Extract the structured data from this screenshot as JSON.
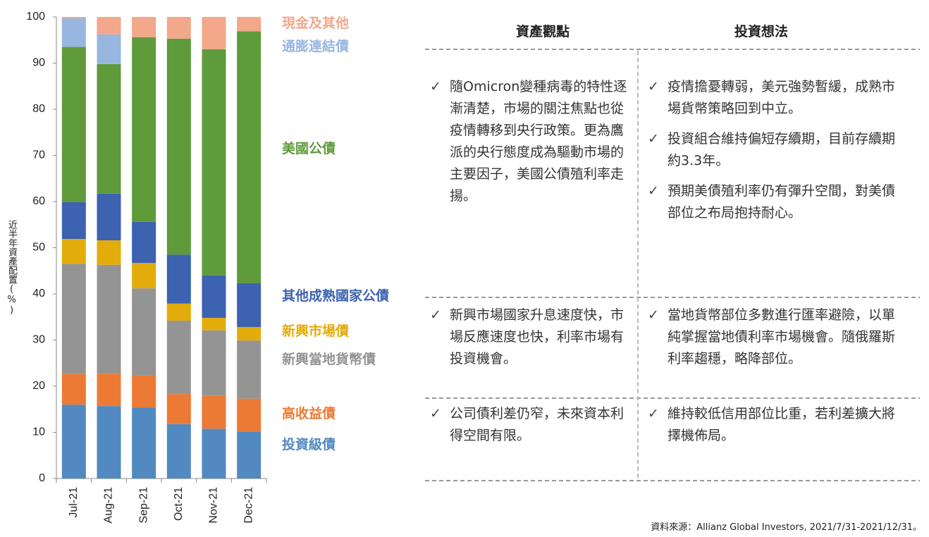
{
  "chart_data": {
    "type": "stacked-bar",
    "y_label": "近半年資產配置(%)",
    "categories": [
      "Jul-21",
      "Aug-21",
      "Sep-21",
      "Oct-21",
      "Nov-21",
      "Dec-21"
    ],
    "ylim": [
      0,
      100
    ],
    "yticks": [
      0,
      10,
      20,
      30,
      40,
      50,
      60,
      70,
      80,
      90,
      100
    ],
    "series": [
      {
        "name": "投資級債",
        "color": "#5289c1",
        "values": [
          16,
          15.7,
          15.4,
          11.8,
          10.8,
          10.2
        ]
      },
      {
        "name": "高收益債",
        "color": "#ec7a35",
        "values": [
          6.7,
          7,
          6.9,
          6.5,
          7.1,
          7.1
        ]
      },
      {
        "name": "新興當地貨幣債",
        "color": "#949494",
        "values": [
          23.8,
          23.6,
          18.9,
          15.9,
          14.2,
          12.6
        ]
      },
      {
        "name": "新興市場債",
        "color": "#e3ac0b",
        "values": [
          5.4,
          5.3,
          5.5,
          3.7,
          2.7,
          2.9
        ]
      },
      {
        "name": "其他成熟國家公債",
        "color": "#3c62b0",
        "values": [
          8,
          10.1,
          8.9,
          10.6,
          9.2,
          9.5
        ]
      },
      {
        "name": "美國公債",
        "color": "#5f9a3b",
        "values": [
          33.6,
          28.1,
          40,
          46.8,
          49,
          54.6
        ]
      },
      {
        "name": "通膨連結債",
        "color": "#97b6e0",
        "values": [
          6.2,
          6.4,
          0,
          0,
          0,
          0
        ]
      },
      {
        "name": "現金及其他",
        "color": "#f3a78b",
        "values": [
          0.3,
          3.8,
          4.4,
          4.7,
          7,
          3.1
        ]
      }
    ]
  },
  "table": {
    "headers": [
      "資產觀點",
      "投資想法"
    ],
    "rows": [
      [
        [
          "隨Omicron變種病毒的特性逐漸清楚，市場的關注焦點也從疫情轉移到央行政策。更為鷹派的央行態度成為驅動市場的主要因子，美國公債殖利率走揚。"
        ],
        [
          "疫情擔憂轉弱，美元強勢暫緩，成熟市場貨幣策略回到中立。",
          "投資組合維持偏短存續期，目前存續期約3.3年。",
          "預期美債殖利率仍有彈升空間，對美債部位之布局抱持耐心。"
        ]
      ],
      [
        [
          "新興市場國家升息速度快，市場反應速度也快，利率市場有投資機會。"
        ],
        [
          "當地貨幣部位多數進行匯率避險，以單純掌握當地債利率市場機會。隨俄羅斯利率趨穩，略降部位。"
        ]
      ],
      [
        [
          "公司債利差仍窄，未來資本利得空間有限。"
        ],
        [
          "維持較低信用部位比重，若利差擴大將擇機佈局。"
        ]
      ]
    ]
  },
  "source": "資料來源：Allianz Global Investors, 2021/7/31-2021/12/31。"
}
